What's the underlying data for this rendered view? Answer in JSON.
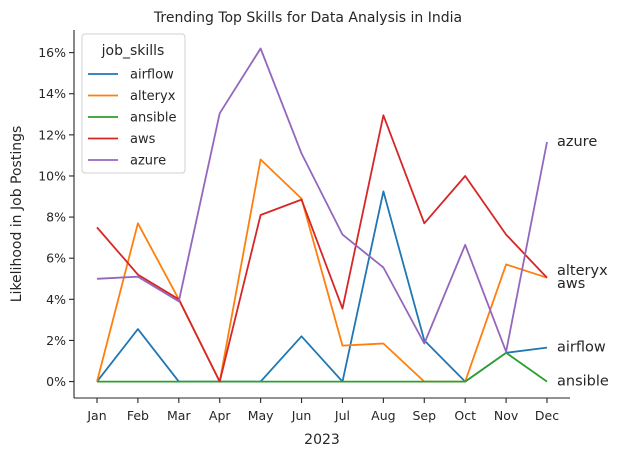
{
  "chart_data": {
    "type": "line",
    "title": "Trending Top Skills for Data Analysis in India",
    "xlabel": "2023",
    "ylabel": "Likelihood in Job Postings",
    "categories": [
      "Jan",
      "Feb",
      "Mar",
      "Apr",
      "May",
      "Jun",
      "Jul",
      "Aug",
      "Sep",
      "Oct",
      "Nov",
      "Dec"
    ],
    "ylim": [
      -0.8,
      17.1
    ],
    "yticks": [
      0,
      2,
      4,
      6,
      8,
      10,
      12,
      14,
      16
    ],
    "ytick_labels": [
      "0%",
      "2%",
      "4%",
      "6%",
      "8%",
      "10%",
      "12%",
      "14%",
      "16%"
    ],
    "grid": false,
    "legend": {
      "title": "job_skills",
      "placement": "upper-left"
    },
    "series": [
      {
        "name": "airflow",
        "color": "#1f77b4",
        "values": [
          0,
          2.55,
          0,
          0,
          0,
          2.2,
          0,
          9.25,
          2,
          0,
          1.4,
          1.65
        ]
      },
      {
        "name": "alteryx",
        "color": "#ff7f0e",
        "values": [
          0,
          7.7,
          4,
          0,
          10.8,
          8.9,
          1.75,
          1.85,
          0,
          0,
          5.7,
          5.05
        ]
      },
      {
        "name": "ansible",
        "color": "#2ca02c",
        "values": [
          0,
          0,
          0,
          0,
          0,
          0,
          0,
          0,
          0,
          0,
          1.4,
          0
        ]
      },
      {
        "name": "aws",
        "color": "#d62728",
        "values": [
          7.5,
          5.2,
          4,
          0,
          8.1,
          8.85,
          3.55,
          12.95,
          7.7,
          10,
          7.15,
          5.05
        ]
      },
      {
        "name": "azure",
        "color": "#9467bd",
        "values": [
          5,
          5.1,
          3.9,
          13.05,
          16.2,
          11.1,
          7.15,
          5.55,
          1.85,
          6.65,
          1.45,
          11.65
        ]
      }
    ]
  }
}
